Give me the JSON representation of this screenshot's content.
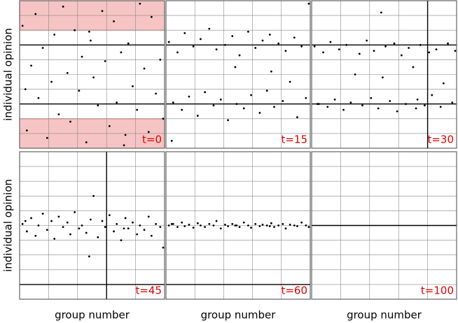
{
  "chart_data": [
    {
      "type": "scatter",
      "ylabel": "individual opinion",
      "annotation": "t=0",
      "color": "#000000",
      "grid": true,
      "xlim": [
        0,
        100
      ],
      "ylim": [
        0,
        10
      ],
      "x": [
        2,
        5,
        8,
        11,
        13,
        16,
        19,
        22,
        24,
        27,
        30,
        33,
        35,
        38,
        41,
        43,
        46,
        49,
        51,
        54,
        57,
        59,
        62,
        65,
        67,
        70,
        73,
        75,
        78,
        81,
        83,
        86,
        89,
        91,
        94,
        97,
        99,
        4,
        48,
        72
      ],
      "y": [
        8.3,
        1.2,
        5.6,
        9.1,
        3.4,
        6.8,
        0.7,
        4.5,
        7.7,
        2.3,
        9.6,
        5.1,
        1.8,
        8.0,
        3.9,
        6.2,
        0.4,
        7.3,
        4.8,
        2.9,
        9.3,
        5.9,
        1.5,
        8.6,
        3.1,
        6.5,
        0.9,
        7.1,
        4.2,
        2.6,
        9.8,
        5.4,
        1.1,
        8.9,
        3.7,
        6.0,
        2.0,
        4.0,
        7.9,
        0.2
      ]
    },
    {
      "type": "scatter",
      "annotation": "t=15",
      "color": "#000000",
      "grid": true,
      "xlim": [
        0,
        100
      ],
      "ylim": [
        0,
        10
      ],
      "x": [
        2,
        5,
        8,
        11,
        13,
        16,
        19,
        22,
        24,
        27,
        30,
        33,
        35,
        38,
        41,
        43,
        46,
        49,
        51,
        54,
        57,
        59,
        62,
        65,
        67,
        70,
        73,
        75,
        78,
        81,
        83,
        86,
        89,
        91,
        94,
        97,
        99,
        4,
        48,
        72
      ],
      "y": [
        7.2,
        3.1,
        6.5,
        2.6,
        7.8,
        3.5,
        6.9,
        2.2,
        7.4,
        3.8,
        8.1,
        2.9,
        6.7,
        3.3,
        7.0,
        1.9,
        7.6,
        3.0,
        6.3,
        2.7,
        7.9,
        3.6,
        6.8,
        2.4,
        7.3,
        3.9,
        5.2,
        2.8,
        7.1,
        3.2,
        6.6,
        4.5,
        7.5,
        2.1,
        6.9,
        3.4,
        9.8,
        0.5,
        5.5,
        7.7
      ]
    },
    {
      "type": "scatter",
      "annotation": "t=30",
      "color": "#000000",
      "grid": true,
      "xlim": [
        0,
        100
      ],
      "ylim": [
        0,
        10
      ],
      "x": [
        2,
        5,
        8,
        11,
        13,
        16,
        19,
        22,
        24,
        27,
        30,
        33,
        35,
        38,
        41,
        43,
        46,
        49,
        51,
        54,
        57,
        59,
        62,
        65,
        67,
        70,
        73,
        75,
        78,
        81,
        83,
        86,
        89,
        91,
        94,
        97,
        99,
        4,
        48,
        72
      ],
      "y": [
        6.9,
        3.0,
        6.5,
        2.8,
        7.2,
        3.3,
        6.7,
        2.6,
        7.0,
        3.1,
        5.0,
        6.4,
        2.9,
        7.3,
        3.4,
        6.6,
        2.7,
        4.8,
        6.9,
        3.2,
        7.1,
        2.5,
        6.3,
        3.0,
        6.8,
        5.5,
        3.3,
        7.0,
        2.9,
        6.5,
        3.6,
        6.7,
        2.8,
        4.4,
        7.1,
        3.1,
        6.6,
        3.0,
        9.2,
        2.7
      ]
    },
    {
      "type": "scatter",
      "ylabel": "individual opinion",
      "xlabel": "group number",
      "annotation": "t=45",
      "color": "#000000",
      "grid": true,
      "xlim": [
        0,
        100
      ],
      "ylim": [
        0,
        10
      ],
      "x": [
        2,
        5,
        8,
        11,
        13,
        16,
        19,
        22,
        24,
        27,
        30,
        33,
        35,
        38,
        41,
        43,
        46,
        49,
        51,
        54,
        57,
        59,
        62,
        65,
        67,
        70,
        73,
        75,
        78,
        81,
        83,
        86,
        89,
        91,
        94,
        97,
        99,
        4,
        48,
        72
      ],
      "y": [
        5.1,
        4.6,
        5.5,
        4.3,
        5.0,
        5.8,
        4.7,
        5.3,
        4.1,
        5.6,
        4.9,
        5.2,
        4.4,
        5.9,
        4.8,
        5.0,
        4.5,
        5.4,
        7.0,
        4.2,
        5.3,
        4.9,
        5.7,
        4.6,
        5.1,
        4.0,
        5.5,
        4.8,
        5.2,
        4.4,
        5.0,
        4.7,
        5.6,
        4.3,
        5.1,
        4.9,
        3.5,
        5.3,
        2.9,
        4.8
      ]
    },
    {
      "type": "scatter",
      "xlabel": "group number",
      "annotation": "t=60",
      "color": "#000000",
      "grid": true,
      "xlim": [
        0,
        100
      ],
      "ylim": [
        0,
        10
      ],
      "x": [
        2,
        5,
        8,
        11,
        13,
        16,
        19,
        22,
        24,
        27,
        30,
        33,
        35,
        38,
        41,
        43,
        46,
        49,
        51,
        54,
        57,
        59,
        62,
        65,
        67,
        70,
        73,
        75,
        78,
        81,
        83,
        86,
        89,
        91,
        94,
        97,
        99,
        4,
        48,
        72
      ],
      "y": [
        5.0,
        5.1,
        4.9,
        5.2,
        4.95,
        5.05,
        4.85,
        5.15,
        5.0,
        4.9,
        5.1,
        5.0,
        5.3,
        4.8,
        5.05,
        4.95,
        5.1,
        5.0,
        4.9,
        5.2,
        5.0,
        4.85,
        5.1,
        4.95,
        5.05,
        5.0,
        5.15,
        4.9,
        5.0,
        5.1,
        4.8,
        5.05,
        5.0,
        4.95,
        5.2,
        5.0,
        4.9,
        5.1,
        5.0,
        4.95
      ]
    },
    {
      "type": "scatter",
      "xlabel": "group number",
      "annotation": "t=100",
      "color": "#000000",
      "grid": true,
      "xlim": [
        0,
        100
      ],
      "ylim": [
        0,
        10
      ],
      "x": [],
      "y": []
    }
  ]
}
